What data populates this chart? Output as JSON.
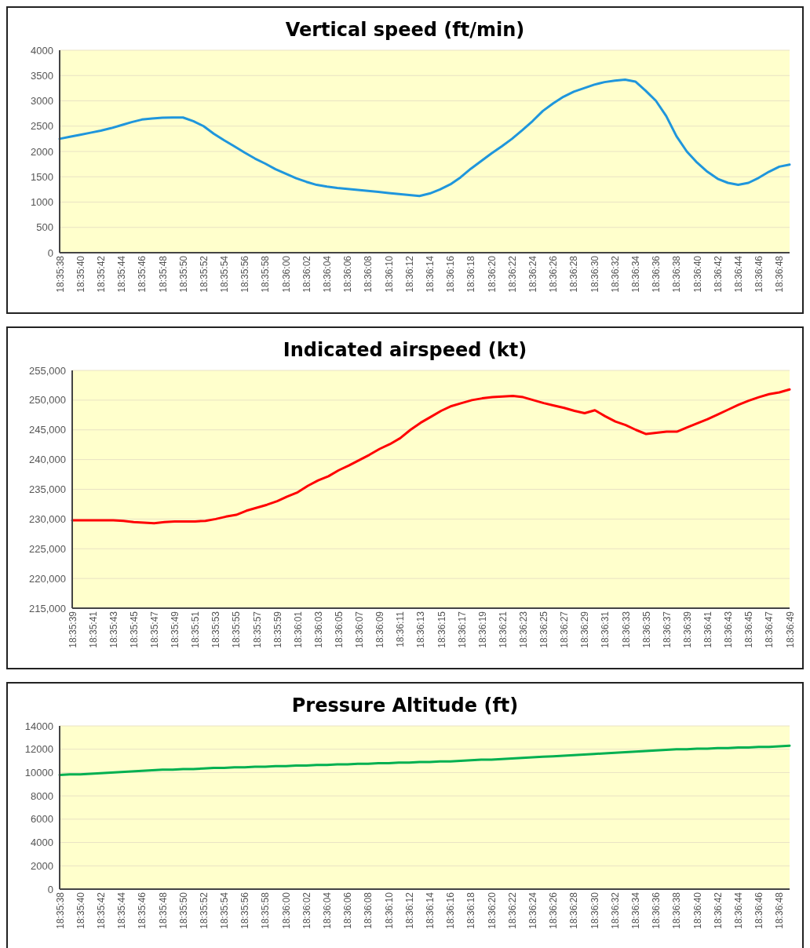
{
  "chart_data": [
    {
      "type": "line",
      "title": "Vertical speed (ft/min)",
      "grid": "y",
      "color": "#1f96dc",
      "categories": [
        "18:35:38",
        null,
        "18:35:40",
        null,
        "18:35:42",
        null,
        "18:35:44",
        null,
        "18:35:46",
        null,
        "18:35:48",
        null,
        "18:35:50",
        null,
        "18:35:52",
        null,
        "18:35:54",
        null,
        "18:35:56",
        null,
        "18:35:58",
        null,
        "18:36:00",
        null,
        "18:36:02",
        null,
        "18:36:04",
        null,
        "18:36:06",
        null,
        "18:36:08",
        null,
        "18:36:10",
        null,
        "18:36:12",
        null,
        "18:36:14",
        null,
        "18:36:16",
        null,
        "18:36:18",
        null,
        "18:36:20",
        null,
        "18:36:22",
        null,
        "18:36:24",
        null,
        "18:36:26",
        null,
        "18:36:28",
        null,
        "18:36:30",
        null,
        "18:36:32",
        null,
        "18:36:34",
        null,
        "18:36:36",
        null,
        "18:36:38",
        null,
        "18:36:40",
        null,
        "18:36:42",
        null,
        "18:36:44",
        null,
        "18:36:46",
        null,
        "18:36:48",
        null
      ],
      "values": [
        2250,
        2290,
        2330,
        2370,
        2410,
        2460,
        2520,
        2580,
        2630,
        2650,
        2665,
        2670,
        2670,
        2600,
        2500,
        2350,
        2220,
        2100,
        1976,
        1860,
        1760,
        1650,
        1560,
        1470,
        1400,
        1340,
        1305,
        1280,
        1260,
        1240,
        1220,
        1200,
        1180,
        1160,
        1140,
        1120,
        1170,
        1250,
        1350,
        1490,
        1660,
        1810,
        1960,
        2100,
        2250,
        2420,
        2600,
        2800,
        2950,
        3080,
        3180,
        3250,
        3320,
        3370,
        3400,
        3420,
        3380,
        3200,
        3000,
        2700,
        2300,
        2000,
        1780,
        1600,
        1460,
        1380,
        1340,
        1380,
        1480,
        1600,
        1700,
        1740
      ],
      "ylim": [
        0,
        4000
      ],
      "yticks": [
        0,
        500,
        1000,
        1500,
        2000,
        2500,
        3000,
        3500,
        4000
      ]
    },
    {
      "type": "line",
      "title": "Indicated airspeed (kt)",
      "grid": "y",
      "color": "#ff0000",
      "categories": [
        "18:35:39",
        null,
        "18:35:41",
        null,
        "18:35:43",
        null,
        "18:35:45",
        null,
        "18:35:47",
        null,
        "18:35:49",
        null,
        "18:35:51",
        null,
        "18:35:53",
        null,
        "18:35:55",
        null,
        "18:35:57",
        null,
        "18:35:59",
        null,
        "18:36:01",
        null,
        "18:36:03",
        null,
        "18:36:05",
        null,
        "18:36:07",
        null,
        "18:36:09",
        null,
        "18:36:11",
        null,
        "18:36:13",
        null,
        "18:36:15",
        null,
        "18:36:17",
        null,
        "18:36:19",
        null,
        "18:36:21",
        null,
        "18:36:23",
        null,
        "18:36:25",
        null,
        "18:36:27",
        null,
        "18:36:29",
        null,
        "18:36:31",
        null,
        "18:36:33",
        null,
        "18:36:35",
        null,
        "18:36:37",
        null,
        "18:36:39",
        null,
        "18:36:41",
        null,
        "18:36:43",
        null,
        "18:36:45",
        null,
        "18:36:47",
        null,
        "18:36:49"
      ],
      "values": [
        229800,
        229800,
        229800,
        229800,
        229800,
        229700,
        229500,
        229400,
        229300,
        229500,
        229600,
        229600,
        229600,
        229700,
        230000,
        230400,
        230700,
        231400,
        231900,
        232400,
        233000,
        233800,
        234500,
        235600,
        236500,
        237200,
        238200,
        239000,
        239900,
        240800,
        241800,
        242600,
        243600,
        245000,
        246200,
        247200,
        248200,
        249000,
        249500,
        250000,
        250300,
        250500,
        250600,
        250700,
        250500,
        250000,
        249500,
        249100,
        248700,
        248200,
        247800,
        248300,
        247300,
        246400,
        245800,
        245000,
        244300,
        244500,
        244700,
        244700,
        245400,
        246100,
        246800,
        247600,
        248400,
        249200,
        249900,
        250500,
        251000,
        251300,
        251800
      ],
      "ylim": [
        215000,
        255000
      ],
      "yticks": [
        {
          "value": 215000,
          "label": "215,000"
        },
        {
          "value": 220000,
          "label": "220,000"
        },
        {
          "value": 225000,
          "label": "225,000"
        },
        {
          "value": 230000,
          "label": "230,000"
        },
        {
          "value": 235000,
          "label": "235,000"
        },
        {
          "value": 240000,
          "label": "240,000"
        },
        {
          "value": 245000,
          "label": "245,000"
        },
        {
          "value": 250000,
          "label": "250,000"
        },
        {
          "value": 255000,
          "label": "255,000"
        }
      ]
    },
    {
      "type": "line",
      "title": "Pressure Altitude (ft)",
      "grid": "y",
      "color": "#00b050",
      "categories": [
        "18:35:38",
        null,
        "18:35:40",
        null,
        "18:35:42",
        null,
        "18:35:44",
        null,
        "18:35:46",
        null,
        "18:35:48",
        null,
        "18:35:50",
        null,
        "18:35:52",
        null,
        "18:35:54",
        null,
        "18:35:56",
        null,
        "18:35:58",
        null,
        "18:36:00",
        null,
        "18:36:02",
        null,
        "18:36:04",
        null,
        "18:36:06",
        null,
        "18:36:08",
        null,
        "18:36:10",
        null,
        "18:36:12",
        null,
        "18:36:14",
        null,
        "18:36:16",
        null,
        "18:36:18",
        null,
        "18:36:20",
        null,
        "18:36:22",
        null,
        "18:36:24",
        null,
        "18:36:26",
        null,
        "18:36:28",
        null,
        "18:36:30",
        null,
        "18:36:32",
        null,
        "18:36:34",
        null,
        "18:36:36",
        null,
        "18:36:38",
        null,
        "18:36:40",
        null,
        "18:36:42",
        null,
        "18:36:44",
        null,
        "18:36:46",
        null,
        "18:36:48",
        null
      ],
      "values": [
        9800,
        9850,
        9850,
        9900,
        9950,
        10000,
        10050,
        10100,
        10150,
        10200,
        10250,
        10250,
        10300,
        10300,
        10350,
        10400,
        10400,
        10450,
        10450,
        10500,
        10500,
        10550,
        10550,
        10600,
        10600,
        10650,
        10650,
        10700,
        10700,
        10750,
        10750,
        10800,
        10800,
        10850,
        10850,
        10900,
        10900,
        10950,
        10950,
        11000,
        11050,
        11100,
        11100,
        11150,
        11200,
        11250,
        11300,
        11350,
        11400,
        11450,
        11500,
        11550,
        11600,
        11650,
        11700,
        11750,
        11800,
        11850,
        11900,
        11950,
        12000,
        12000,
        12050,
        12050,
        12100,
        12100,
        12150,
        12150,
        12200,
        12200,
        12250,
        12300
      ],
      "ylim": [
        0,
        14000
      ],
      "yticks": [
        0,
        2000,
        4000,
        6000,
        8000,
        10000,
        12000,
        14000
      ]
    }
  ]
}
